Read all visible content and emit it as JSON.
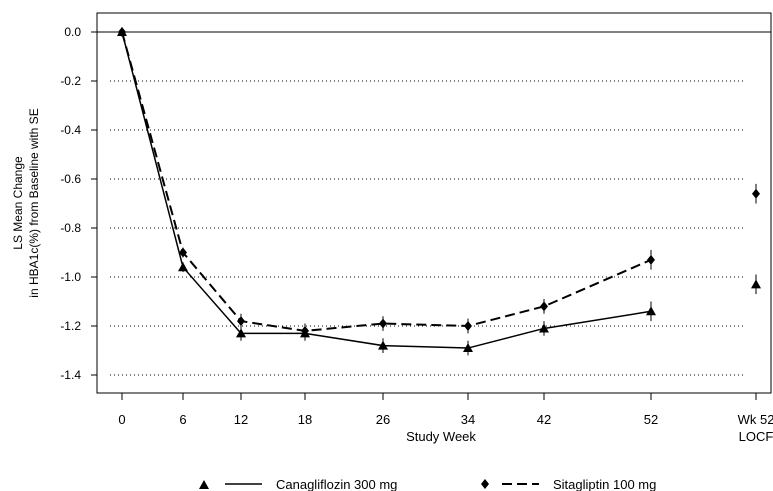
{
  "chart_data": {
    "type": "line",
    "xlabel": "Study Week",
    "ylabel_line1": "LS Mean Change",
    "ylabel_line2": "in HBA1c(%) from Baseline with SE",
    "x_ticks": [
      "0",
      "6",
      "12",
      "18",
      "26",
      "34",
      "42",
      "52"
    ],
    "locf_tick_line1": "Wk 52",
    "locf_tick_line2": "LOCF",
    "y_ticks": [
      "0.0",
      "-0.2",
      "-0.4",
      "-0.6",
      "-0.8",
      "-1.0",
      "-1.2",
      "-1.4"
    ],
    "ylim": [
      -1.5,
      0.05
    ],
    "grid": "dotted horizontal",
    "legend_position": "bottom",
    "series": [
      {
        "name": "Canagliflozin 300 mg",
        "marker": "triangle",
        "line": "solid",
        "x": [
          0,
          6,
          12,
          18,
          26,
          34,
          42,
          52
        ],
        "y": [
          0.0,
          -0.96,
          -1.23,
          -1.23,
          -1.28,
          -1.29,
          -1.21,
          -1.14
        ],
        "se": [
          0.0,
          0.02,
          0.03,
          0.03,
          0.03,
          0.03,
          0.03,
          0.04
        ],
        "locf": {
          "y": -1.03,
          "se": 0.04
        }
      },
      {
        "name": "Sitagliptin 100 mg",
        "marker": "diamond",
        "line": "dashed",
        "x": [
          0,
          6,
          12,
          18,
          26,
          34,
          42,
          52
        ],
        "y": [
          0.0,
          -0.9,
          -1.18,
          -1.22,
          -1.19,
          -1.2,
          -1.12,
          -0.93
        ],
        "se": [
          0.0,
          0.02,
          0.03,
          0.03,
          0.03,
          0.03,
          0.03,
          0.04
        ],
        "locf": {
          "y": -0.66,
          "se": 0.04
        }
      }
    ]
  }
}
